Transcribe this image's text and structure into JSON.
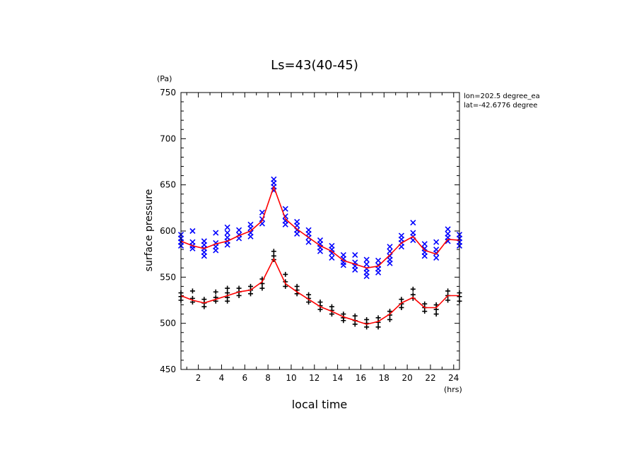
{
  "chart_data": {
    "type": "scatter",
    "title": "Ls=43(40-45)",
    "xlabel": "local time",
    "ylabel": "surface pressure",
    "x_unit": "(hrs)",
    "y_unit": "(Pa)",
    "xlim": [
      0.5,
      24.5
    ],
    "ylim": [
      450,
      750
    ],
    "x_ticks": [
      2,
      4,
      6,
      8,
      10,
      12,
      14,
      16,
      18,
      20,
      22,
      24
    ],
    "y_ticks": [
      450,
      500,
      550,
      600,
      650,
      700,
      750
    ],
    "annotations": [
      "lon=202.5 degree_ea",
      "lat=-42.6776 degree"
    ],
    "grid": false,
    "colors": {
      "upper_markers": "#0000ff",
      "lower_markers": "#000000",
      "mean_line": "#ff0000"
    },
    "series": [
      {
        "marker": "x",
        "color": "#0000ff",
        "points": [
          [
            0.5,
            596
          ],
          [
            0.5,
            592
          ],
          [
            0.5,
            588
          ],
          [
            0.5,
            584
          ],
          [
            1.5,
            600
          ],
          [
            1.5,
            588
          ],
          [
            1.5,
            584
          ],
          [
            1.5,
            581
          ],
          [
            2.5,
            589
          ],
          [
            2.5,
            585
          ],
          [
            2.5,
            581
          ],
          [
            2.5,
            577
          ],
          [
            2.5,
            573
          ],
          [
            3.5,
            598
          ],
          [
            3.5,
            587
          ],
          [
            3.5,
            583
          ],
          [
            3.5,
            579
          ],
          [
            4.5,
            604
          ],
          [
            4.5,
            598
          ],
          [
            4.5,
            593
          ],
          [
            4.5,
            589
          ],
          [
            4.5,
            585
          ],
          [
            5.5,
            601
          ],
          [
            5.5,
            596
          ],
          [
            5.5,
            592
          ],
          [
            6.5,
            607
          ],
          [
            6.5,
            603
          ],
          [
            6.5,
            598
          ],
          [
            6.5,
            594
          ],
          [
            7.5,
            620
          ],
          [
            7.5,
            613
          ],
          [
            7.5,
            608
          ],
          [
            8.5,
            656
          ],
          [
            8.5,
            652
          ],
          [
            8.5,
            648
          ],
          [
            8.5,
            644
          ],
          [
            9.5,
            624
          ],
          [
            9.5,
            616
          ],
          [
            9.5,
            611
          ],
          [
            9.5,
            607
          ],
          [
            10.5,
            610
          ],
          [
            10.5,
            606
          ],
          [
            10.5,
            601
          ],
          [
            10.5,
            597
          ],
          [
            11.5,
            601
          ],
          [
            11.5,
            597
          ],
          [
            11.5,
            593
          ],
          [
            11.5,
            588
          ],
          [
            12.5,
            590
          ],
          [
            12.5,
            586
          ],
          [
            12.5,
            582
          ],
          [
            12.5,
            578
          ],
          [
            13.5,
            584
          ],
          [
            13.5,
            580
          ],
          [
            13.5,
            576
          ],
          [
            13.5,
            571
          ],
          [
            14.5,
            574
          ],
          [
            14.5,
            570
          ],
          [
            14.5,
            566
          ],
          [
            14.5,
            563
          ],
          [
            15.5,
            574
          ],
          [
            15.5,
            566
          ],
          [
            15.5,
            562
          ],
          [
            15.5,
            558
          ],
          [
            16.5,
            569
          ],
          [
            16.5,
            564
          ],
          [
            16.5,
            559
          ],
          [
            16.5,
            555
          ],
          [
            16.5,
            551
          ],
          [
            17.5,
            568
          ],
          [
            17.5,
            563
          ],
          [
            17.5,
            559
          ],
          [
            17.5,
            555
          ],
          [
            18.5,
            583
          ],
          [
            18.5,
            578
          ],
          [
            18.5,
            573
          ],
          [
            18.5,
            569
          ],
          [
            18.5,
            565
          ],
          [
            19.5,
            595
          ],
          [
            19.5,
            591
          ],
          [
            19.5,
            587
          ],
          [
            19.5,
            583
          ],
          [
            20.5,
            609
          ],
          [
            20.5,
            598
          ],
          [
            20.5,
            594
          ],
          [
            20.5,
            590
          ],
          [
            21.5,
            586
          ],
          [
            21.5,
            581
          ],
          [
            21.5,
            577
          ],
          [
            21.5,
            573
          ],
          [
            22.5,
            588
          ],
          [
            22.5,
            580
          ],
          [
            22.5,
            576
          ],
          [
            22.5,
            571
          ],
          [
            23.5,
            602
          ],
          [
            23.5,
            597
          ],
          [
            23.5,
            593
          ],
          [
            23.5,
            589
          ],
          [
            24.5,
            596
          ],
          [
            24.5,
            592
          ],
          [
            24.5,
            588
          ],
          [
            24.5,
            584
          ]
        ]
      },
      {
        "marker": "+",
        "color": "#000000",
        "points": [
          [
            0.5,
            533
          ],
          [
            0.5,
            529
          ],
          [
            0.5,
            525
          ],
          [
            1.5,
            535
          ],
          [
            1.5,
            527
          ],
          [
            1.5,
            523
          ],
          [
            2.5,
            526
          ],
          [
            2.5,
            522
          ],
          [
            2.5,
            518
          ],
          [
            3.5,
            534
          ],
          [
            3.5,
            528
          ],
          [
            3.5,
            524
          ],
          [
            4.5,
            538
          ],
          [
            4.5,
            533
          ],
          [
            4.5,
            528
          ],
          [
            4.5,
            524
          ],
          [
            5.5,
            538
          ],
          [
            5.5,
            534
          ],
          [
            5.5,
            530
          ],
          [
            6.5,
            540
          ],
          [
            6.5,
            536
          ],
          [
            6.5,
            532
          ],
          [
            7.5,
            548
          ],
          [
            7.5,
            543
          ],
          [
            7.5,
            538
          ],
          [
            8.5,
            578
          ],
          [
            8.5,
            573
          ],
          [
            8.5,
            569
          ],
          [
            9.5,
            553
          ],
          [
            9.5,
            545
          ],
          [
            9.5,
            540
          ],
          [
            10.5,
            540
          ],
          [
            10.5,
            536
          ],
          [
            10.5,
            532
          ],
          [
            11.5,
            531
          ],
          [
            11.5,
            527
          ],
          [
            11.5,
            523
          ],
          [
            12.5,
            523
          ],
          [
            12.5,
            519
          ],
          [
            12.5,
            515
          ],
          [
            13.5,
            518
          ],
          [
            13.5,
            514
          ],
          [
            13.5,
            510
          ],
          [
            14.5,
            510
          ],
          [
            14.5,
            506
          ],
          [
            14.5,
            503
          ],
          [
            15.5,
            508
          ],
          [
            15.5,
            503
          ],
          [
            15.5,
            499
          ],
          [
            16.5,
            504
          ],
          [
            16.5,
            500
          ],
          [
            16.5,
            496
          ],
          [
            17.5,
            506
          ],
          [
            17.5,
            501
          ],
          [
            17.5,
            496
          ],
          [
            18.5,
            513
          ],
          [
            18.5,
            509
          ],
          [
            18.5,
            504
          ],
          [
            19.5,
            526
          ],
          [
            19.5,
            521
          ],
          [
            19.5,
            517
          ],
          [
            20.5,
            537
          ],
          [
            20.5,
            531
          ],
          [
            20.5,
            527
          ],
          [
            21.5,
            521
          ],
          [
            21.5,
            517
          ],
          [
            21.5,
            513
          ],
          [
            22.5,
            520
          ],
          [
            22.5,
            515
          ],
          [
            22.5,
            510
          ],
          [
            23.5,
            535
          ],
          [
            23.5,
            530
          ],
          [
            23.5,
            525
          ],
          [
            24.5,
            533
          ],
          [
            24.5,
            529
          ],
          [
            24.5,
            524
          ]
        ]
      },
      {
        "marker": "line",
        "color": "#ff0000",
        "x": [
          0.5,
          1.5,
          2.5,
          3.5,
          4.5,
          5.5,
          6.5,
          7.5,
          8.5,
          9.5,
          10.5,
          11.5,
          12.5,
          13.5,
          14.5,
          15.5,
          16.5,
          17.5,
          18.5,
          19.5,
          20.5,
          21.5,
          22.5,
          23.5,
          24.5
        ],
        "values": [
          589,
          584,
          581,
          586,
          589,
          595,
          600,
          611,
          648,
          613,
          602,
          593,
          584,
          578,
          568,
          564,
          560,
          562,
          574,
          587,
          594,
          579,
          575,
          591,
          590
        ]
      },
      {
        "marker": "line",
        "color": "#ff0000",
        "x": [
          0.5,
          1.5,
          2.5,
          3.5,
          4.5,
          5.5,
          6.5,
          7.5,
          8.5,
          9.5,
          10.5,
          11.5,
          12.5,
          13.5,
          14.5,
          15.5,
          16.5,
          17.5,
          18.5,
          19.5,
          20.5,
          21.5,
          22.5,
          23.5,
          24.5
        ],
        "values": [
          530,
          525,
          522,
          526,
          530,
          534,
          536,
          545,
          570,
          543,
          534,
          526,
          518,
          513,
          507,
          503,
          499,
          502,
          510,
          522,
          528,
          517,
          517,
          530,
          530
        ]
      }
    ]
  }
}
